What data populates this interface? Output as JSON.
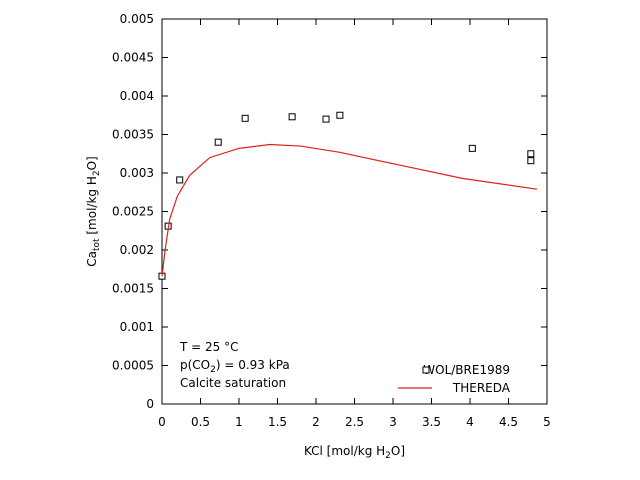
{
  "chart_data": {
    "type": "scatter",
    "xlabel": [
      "KCl [mol/kg H",
      "2",
      "O]"
    ],
    "ylabel": [
      "Ca",
      "tot",
      " [mol/kg H",
      "2",
      "O]"
    ],
    "annotations": [
      [
        "T = 25 °C"
      ],
      [
        "p(CO",
        "2",
        ") = 0.93 kPa"
      ],
      [
        "Calcite saturation"
      ]
    ],
    "xlim": [
      0,
      5
    ],
    "ylim": [
      0,
      0.005
    ],
    "xticks": [
      0,
      0.5,
      1,
      1.5,
      2,
      2.5,
      3,
      3.5,
      4,
      4.5,
      5
    ],
    "yticks": [
      0,
      0.0005,
      0.001,
      0.0015,
      0.002,
      0.0025,
      0.003,
      0.0035,
      0.004,
      0.0045,
      0.005
    ],
    "legend": "lower right",
    "series": [
      {
        "name": "WOL/BRE1989",
        "kind": "markers",
        "color": "#000000",
        "x": [
          0,
          0.08,
          0.23,
          0.73,
          1.08,
          1.69,
          2.13,
          2.31,
          4.03,
          4.79,
          4.79
        ],
        "values": [
          0.00166,
          0.00231,
          0.00291,
          0.0034,
          0.00371,
          0.00373,
          0.0037,
          0.00375,
          0.00332,
          0.00325,
          0.00316
        ]
      },
      {
        "name": "THEREDA",
        "kind": "line",
        "color": "#e0201c",
        "x": [
          0,
          0.04,
          0.1,
          0.2,
          0.36,
          0.62,
          1.0,
          1.4,
          1.8,
          2.3,
          3.1,
          3.9,
          4.87
        ],
        "values": [
          0.00166,
          0.002,
          0.0024,
          0.0027,
          0.00297,
          0.0032,
          0.00332,
          0.00337,
          0.00335,
          0.00327,
          0.0031,
          0.00293,
          0.00279
        ]
      }
    ]
  }
}
